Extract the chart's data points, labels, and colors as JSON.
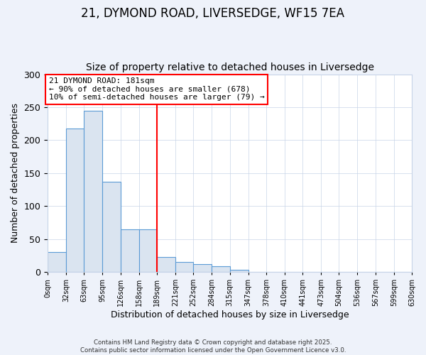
{
  "title": "21, DYMOND ROAD, LIVERSEDGE, WF15 7EA",
  "subtitle": "Size of property relative to detached houses in Liversedge",
  "bar_edges": [
    0,
    32,
    63,
    95,
    126,
    158,
    189,
    221,
    252,
    284,
    315,
    347,
    378,
    410,
    441,
    473,
    504,
    536,
    567,
    599,
    630
  ],
  "bar_heights": [
    30,
    218,
    245,
    137,
    65,
    65,
    23,
    15,
    12,
    8,
    3,
    0,
    0,
    0,
    0,
    0,
    0,
    0,
    0,
    0
  ],
  "bar_facecolor": "#dae4f0",
  "bar_edgecolor": "#5b9bd5",
  "vline_x": 189,
  "vline_color": "red",
  "xlabel": "Distribution of detached houses by size in Liversedge",
  "ylabel": "Number of detached properties",
  "ylim": [
    0,
    300
  ],
  "yticks": [
    0,
    50,
    100,
    150,
    200,
    250,
    300
  ],
  "xtick_labels": [
    "0sqm",
    "32sqm",
    "63sqm",
    "95sqm",
    "126sqm",
    "158sqm",
    "189sqm",
    "221sqm",
    "252sqm",
    "284sqm",
    "315sqm",
    "347sqm",
    "378sqm",
    "410sqm",
    "441sqm",
    "473sqm",
    "504sqm",
    "536sqm",
    "567sqm",
    "599sqm",
    "630sqm"
  ],
  "annotation_title": "21 DYMOND ROAD: 181sqm",
  "annotation_line1": "← 90% of detached houses are smaller (678)",
  "annotation_line2": "10% of semi-detached houses are larger (79) →",
  "annotation_box_color": "red",
  "annotation_bg": "white",
  "title_fontsize": 12,
  "subtitle_fontsize": 10,
  "footnote1": "Contains HM Land Registry data © Crown copyright and database right 2025.",
  "footnote2": "Contains public sector information licensed under the Open Government Licence v3.0.",
  "bg_color": "#eef2fa",
  "plot_bg_color": "white",
  "grid_color": "#c8d4e8"
}
